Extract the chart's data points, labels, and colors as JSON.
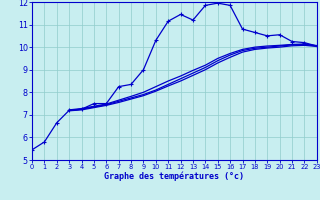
{
  "xlabel": "Graphe des températures (°c)",
  "xlim": [
    0,
    23
  ],
  "ylim": [
    5,
    12
  ],
  "xticks": [
    0,
    1,
    2,
    3,
    4,
    5,
    6,
    7,
    8,
    9,
    10,
    11,
    12,
    13,
    14,
    15,
    16,
    17,
    18,
    19,
    20,
    21,
    22,
    23
  ],
  "yticks": [
    5,
    6,
    7,
    8,
    9,
    10,
    11,
    12
  ],
  "bg": "#c8eef0",
  "lc": "#0000cc",
  "gc": "#90cccc",
  "c1x": [
    0,
    1,
    2,
    3,
    4,
    5,
    6,
    7,
    8,
    9,
    10,
    11,
    12,
    13,
    14,
    15,
    16,
    17,
    18,
    19,
    20,
    21,
    22,
    23
  ],
  "c1y": [
    5.45,
    5.8,
    6.65,
    7.2,
    7.25,
    7.5,
    7.5,
    8.25,
    8.35,
    9.0,
    10.3,
    11.15,
    11.45,
    11.2,
    11.85,
    11.95,
    11.85,
    10.8,
    10.65,
    10.5,
    10.55,
    10.25,
    10.2,
    10.05
  ],
  "c2x": [
    3,
    4,
    5,
    6,
    7,
    8,
    9,
    10,
    11,
    12,
    13,
    14,
    15,
    16,
    17,
    18,
    19,
    20,
    21,
    22,
    23
  ],
  "c2y": [
    7.2,
    7.25,
    7.35,
    7.45,
    7.6,
    7.75,
    7.9,
    8.1,
    8.35,
    8.6,
    8.85,
    9.1,
    9.4,
    9.65,
    9.85,
    9.95,
    10.0,
    10.05,
    10.1,
    10.12,
    10.05
  ],
  "c3x": [
    3,
    4,
    5,
    6,
    7,
    8,
    9,
    10,
    11,
    12,
    13,
    14,
    15,
    16,
    17,
    18,
    19,
    20,
    21,
    22,
    23
  ],
  "c3y": [
    7.22,
    7.28,
    7.38,
    7.48,
    7.65,
    7.82,
    8.0,
    8.25,
    8.5,
    8.72,
    8.97,
    9.2,
    9.5,
    9.72,
    9.9,
    10.0,
    10.05,
    10.08,
    10.12,
    10.14,
    10.07
  ],
  "c4x": [
    3,
    4,
    5,
    6,
    7,
    8,
    9,
    10,
    11,
    12,
    13,
    14,
    15,
    16,
    17,
    18,
    19,
    20,
    21,
    22,
    23
  ],
  "c4y": [
    7.18,
    7.22,
    7.32,
    7.42,
    7.55,
    7.7,
    7.85,
    8.05,
    8.28,
    8.5,
    8.75,
    9.0,
    9.3,
    9.55,
    9.78,
    9.9,
    9.96,
    10.0,
    10.06,
    10.08,
    10.03
  ]
}
